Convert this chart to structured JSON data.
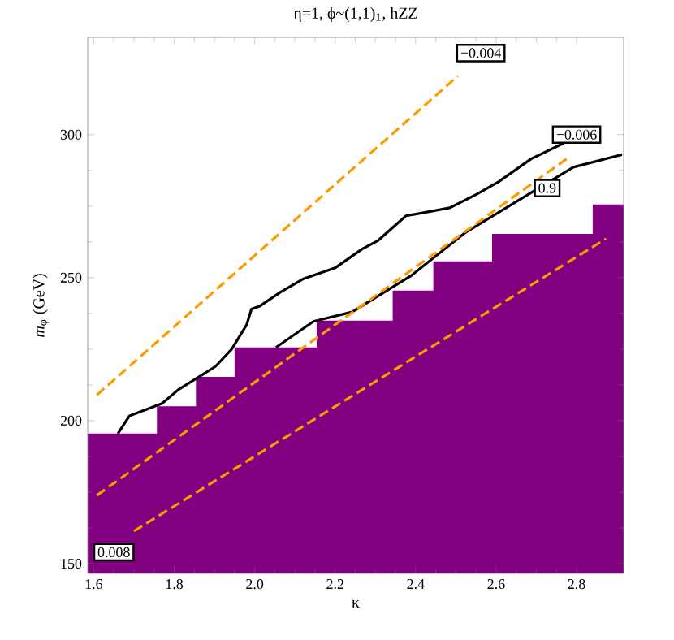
{
  "chart_data": {
    "type": "line",
    "title": "η=1, ϕ~(1,1)$_{1}$, hZZ",
    "xlabel": "κ",
    "ylabel": "*m*$_{φ}$ (GeV)",
    "xlim": [
      1.585,
      2.917
    ],
    "ylim": [
      146.6,
      334
    ],
    "xticks": [
      1.6,
      1.8,
      {
        "value": 2.0,
        "label": "2.0"
      },
      2.2,
      2.4,
      2.6,
      2.8
    ],
    "yticks": [
      150,
      200,
      250,
      300
    ],
    "series": [
      {
        "type": "area",
        "color": "#800080",
        "x": [
          1.585,
          1.757,
          1.757,
          1.854,
          1.854,
          1.95,
          1.95,
          2.154,
          2.154,
          2.343,
          2.343,
          2.444,
          2.444,
          2.59,
          2.59,
          2.84,
          2.84,
          2.917
        ],
        "values": [
          195.5,
          195.5,
          205,
          205,
          215.3,
          215.3,
          225.6,
          225.6,
          235,
          235,
          245.5,
          245.5,
          255.7,
          255.7,
          265.3,
          265.3,
          275.6,
          275.6
        ]
      },
      {
        "color": "#000000",
        "line_style": "solid",
        "x": [
          1.66,
          1.689,
          1.77,
          1.81,
          1.903,
          1.943,
          1.98,
          1.992,
          2.012,
          2.065,
          2.12,
          2.2,
          2.267,
          2.307,
          2.376,
          2.485,
          2.55,
          2.606,
          2.687,
          2.768
        ],
        "values": [
          195.5,
          201.7,
          206,
          210.8,
          219,
          225,
          233.5,
          239,
          240,
          245,
          249.5,
          253.4,
          260,
          263,
          271.6,
          274.4,
          279,
          283.5,
          291.5,
          297
        ]
      },
      {
        "color": "#000000",
        "line_style": "solid",
        "x": [
          2.053,
          2.146,
          2.242,
          2.388,
          2.525,
          2.659,
          2.792,
          2.913
        ],
        "values": [
          225.6,
          234.7,
          238,
          250.6,
          265.9,
          277.3,
          288.6,
          293
        ]
      },
      {
        "color": "#ff9900",
        "line_style": "dashed",
        "x": [
          1.608,
          2.505
        ],
        "values": [
          209,
          320.5
        ]
      },
      {
        "color": "#ff9900",
        "line_style": "dashed",
        "x": [
          1.608,
          2.78
        ],
        "values": [
          173.9,
          292
        ]
      },
      {
        "color": "#ff9900",
        "line_style": "dashed",
        "x": [
          1.7,
          2.873
        ],
        "values": [
          161.4,
          263.6
        ]
      }
    ],
    "annotations": [
      {
        "text": "−0.004",
        "x": 2.562,
        "y": 328.5
      },
      {
        "text": "−0.006",
        "x": 2.8,
        "y": 300
      },
      {
        "text": "0.9",
        "x": 2.727,
        "y": 281.3
      },
      {
        "text": "0.008",
        "x": 1.65,
        "y": 154
      }
    ]
  }
}
